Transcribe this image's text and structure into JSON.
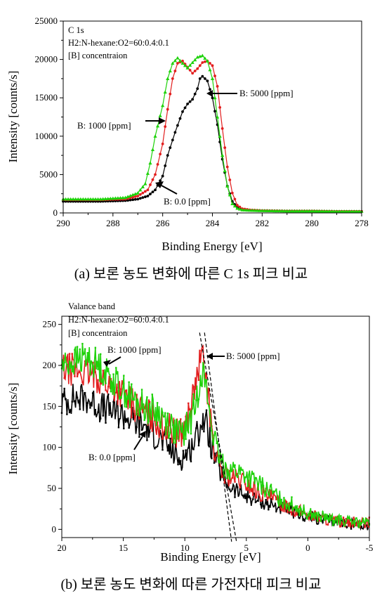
{
  "captions": {
    "a": "(a) 보론 농도 변화에 따른 C 1s 피크 비교",
    "b": "(b) 보론 농도 변화에 따른 가전자대 피크 비교"
  },
  "chart_data": [
    {
      "id": "c1s",
      "type": "scatter",
      "xlabel": "Binding Energy [eV]",
      "ylabel": "Intensity [counts/s]",
      "xlim": [
        290,
        278
      ],
      "ylim": [
        0,
        25000
      ],
      "xticks": [
        290,
        288,
        286,
        284,
        282,
        280,
        278
      ],
      "yticks": [
        0,
        5000,
        10000,
        15000,
        20000,
        25000
      ],
      "annotation_lines": [
        "C 1s",
        "H2:N-hexane:O2=60:0.4:0.1",
        "[B] concentraion"
      ],
      "labels": [
        "B: 5000 [ppm]",
        "B: 1000 [ppm]",
        "B: 0.0 [ppm]"
      ],
      "series": [
        {
          "name": "B: 0.0 [ppm]",
          "color": "#000000",
          "marker": "circle",
          "x": [
            290,
            288.5,
            287.5,
            287,
            286.6,
            286.3,
            286,
            285.8,
            285.5,
            285.2,
            285,
            284.8,
            284.6,
            284.5,
            284.4,
            284.2,
            284,
            283.8,
            283.6,
            283.4,
            283.2,
            283,
            282.8,
            282.5,
            282,
            281,
            280,
            279,
            278
          ],
          "y": [
            1500,
            1500,
            1600,
            1800,
            2200,
            3000,
            4800,
            7500,
            10500,
            13200,
            14200,
            14800,
            16200,
            17500,
            17800,
            17200,
            15000,
            11500,
            7000,
            3500,
            1500,
            700,
            450,
            350,
            300,
            250,
            250,
            200,
            200
          ]
        },
        {
          "name": "B: 1000 [ppm]",
          "color": "#1ed20a",
          "marker": "triangle",
          "x": [
            290,
            288.5,
            287.5,
            287,
            286.7,
            286.5,
            286.3,
            286,
            285.8,
            285.6,
            285.4,
            285.2,
            285,
            284.8,
            284.6,
            284.4,
            284.2,
            284,
            283.8,
            283.6,
            283.4,
            283.2,
            283,
            282.8,
            282.5,
            282,
            281,
            280,
            279,
            278
          ],
          "y": [
            1800,
            1800,
            2000,
            2600,
            3800,
            6500,
            10000,
            14000,
            17500,
            19500,
            20200,
            19500,
            18900,
            19600,
            20300,
            20500,
            19800,
            17500,
            12500,
            7500,
            3500,
            1200,
            600,
            400,
            350,
            300,
            250,
            250,
            200,
            200
          ]
        },
        {
          "name": "B: 5000 [ppm]",
          "color": "#e21e1e",
          "marker": "circle",
          "x": [
            290,
            288.5,
            287.5,
            287,
            286.6,
            286.3,
            286,
            285.8,
            285.6,
            285.4,
            285.2,
            285,
            284.8,
            284.6,
            284.4,
            284.2,
            284,
            283.8,
            283.6,
            283.4,
            283.2,
            283,
            282.8,
            282.5,
            282,
            281,
            280,
            279,
            278
          ],
          "y": [
            1700,
            1700,
            1800,
            2200,
            3000,
            5000,
            9000,
            13500,
            17500,
            19500,
            19800,
            19000,
            18200,
            18800,
            19600,
            19800,
            19200,
            16500,
            11000,
            6000,
            2600,
            1000,
            550,
            400,
            300,
            250,
            250,
            200,
            200
          ]
        }
      ]
    },
    {
      "id": "valence",
      "type": "line",
      "xlabel": "Binding Energy [eV]",
      "ylabel": "Intensity [counts/s]",
      "xlim": [
        20,
        -5
      ],
      "ylim": [
        -10,
        260
      ],
      "xticks": [
        20,
        15,
        10,
        5,
        0,
        -5
      ],
      "yticks": [
        0,
        50,
        100,
        150,
        200,
        250
      ],
      "annotation_lines": [
        "Valance band",
        "H2:N-hexane:O2=60:0.4:0.1",
        "[B] concentraion"
      ],
      "labels": [
        "B: 1000 [ppm]",
        "B: 5000 [ppm]",
        "B: 0.0 [ppm]"
      ],
      "series": [
        {
          "name": "B: 0.0 [ppm]",
          "color": "#000000",
          "x": [
            20,
            19,
            18,
            17,
            16,
            15,
            14,
            13,
            12,
            11,
            10.5,
            10,
            9.5,
            9,
            8.6,
            8.2,
            7.8,
            7.4,
            7,
            6.5,
            6,
            5.5,
            5,
            4,
            3,
            2,
            1,
            0,
            -1,
            -2,
            -3,
            -4,
            -5
          ],
          "y": [
            155,
            160,
            160,
            150,
            145,
            140,
            130,
            125,
            110,
            95,
            85,
            90,
            100,
            115,
            135,
            125,
            100,
            80,
            65,
            55,
            48,
            45,
            40,
            35,
            30,
            25,
            20,
            15,
            12,
            10,
            8,
            6,
            5
          ]
        },
        {
          "name": "B: 1000 [ppm]",
          "color": "#1ed20a",
          "x": [
            20,
            19,
            18,
            17,
            16,
            15,
            14,
            13,
            12,
            11,
            10.5,
            10,
            9.5,
            9,
            8.7,
            8.5,
            8.2,
            7.8,
            7.4,
            7,
            6.5,
            6,
            5.5,
            5,
            4,
            3,
            2,
            1,
            0,
            -1,
            -2,
            -3,
            -4,
            -5
          ],
          "y": [
            200,
            205,
            210,
            200,
            185,
            170,
            155,
            148,
            140,
            125,
            115,
            120,
            135,
            160,
            195,
            190,
            165,
            125,
            95,
            80,
            75,
            72,
            70,
            65,
            55,
            45,
            35,
            28,
            20,
            15,
            12,
            10,
            8,
            8
          ]
        },
        {
          "name": "B: 5000 [ppm]",
          "color": "#e21e1e",
          "x": [
            20,
            19,
            18,
            17,
            16,
            15,
            14,
            13,
            12,
            11,
            10.5,
            10,
            9.5,
            9,
            8.7,
            8.5,
            8.2,
            7.8,
            7.4,
            7,
            6.5,
            6,
            5.5,
            5,
            4,
            3,
            2,
            1,
            0,
            -1,
            -2,
            -3,
            -4,
            -5
          ],
          "y": [
            195,
            195,
            190,
            185,
            175,
            165,
            150,
            140,
            130,
            120,
            115,
            125,
            150,
            185,
            210,
            205,
            175,
            120,
            85,
            70,
            65,
            62,
            60,
            55,
            45,
            38,
            30,
            24,
            18,
            14,
            10,
            9,
            8,
            8
          ]
        }
      ],
      "fit_lines": [
        {
          "x": [
            8.8,
            5.8
          ],
          "y": [
            240,
            -15
          ]
        },
        {
          "x": [
            8.4,
            6.2
          ],
          "y": [
            240,
            -15
          ]
        }
      ]
    }
  ]
}
